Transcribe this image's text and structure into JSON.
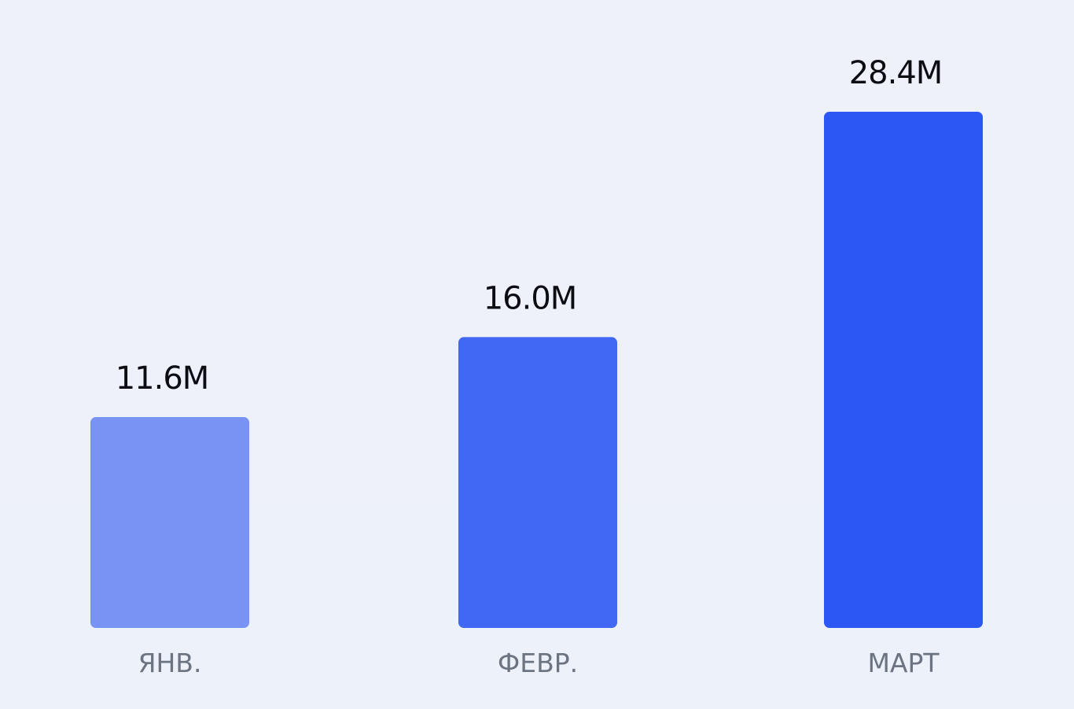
{
  "chart_data": {
    "type": "bar",
    "categories": [
      "ЯНВ.",
      "ФЕВР.",
      "МАРТ"
    ],
    "values": [
      11.6,
      16.0,
      28.4
    ],
    "value_labels": [
      "11.6M",
      "16.0M",
      "28.4M"
    ],
    "bar_colors": [
      "#7893f4",
      "#4068f2",
      "#2c57f4"
    ],
    "ylim": [
      0,
      28.4
    ],
    "grid": false,
    "legend": "none"
  }
}
